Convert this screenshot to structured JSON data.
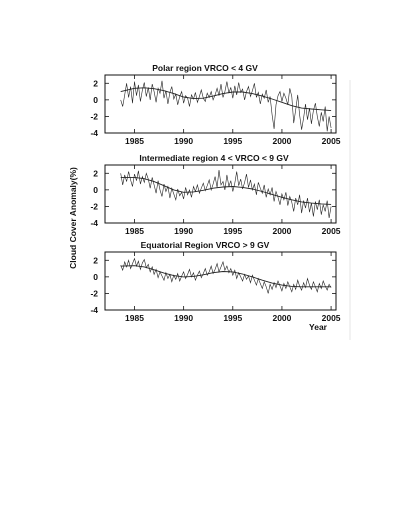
{
  "chart_data": [
    {
      "type": "line",
      "title": "Polar region VRCO < 4 GV",
      "xlabel": "",
      "ylabel": "Cloud Cover Anomaly(%)",
      "xlim": [
        1982,
        2005.5
      ],
      "ylim": [
        -4,
        3
      ],
      "xticks": [
        1985,
        1990,
        1995,
        2000,
        2005
      ],
      "yticks": [
        2,
        0,
        -2,
        -4
      ],
      "grid": false,
      "series": [
        {
          "kind": "raw",
          "x": [
            1983.6,
            1983.8,
            1984.0,
            1984.2,
            1984.4,
            1984.6,
            1984.8,
            1985.0,
            1985.2,
            1985.4,
            1985.6,
            1985.8,
            1986.0,
            1986.2,
            1986.4,
            1986.6,
            1986.8,
            1987.0,
            1987.2,
            1987.4,
            1987.6,
            1987.8,
            1988.0,
            1988.2,
            1988.4,
            1988.6,
            1988.8,
            1989.0,
            1989.2,
            1989.4,
            1989.6,
            1989.8,
            1990.0,
            1990.2,
            1990.4,
            1990.6,
            1990.8,
            1991.0,
            1991.2,
            1991.4,
            1991.6,
            1991.8,
            1992.0,
            1992.2,
            1992.4,
            1992.6,
            1992.8,
            1993.0,
            1993.2,
            1993.4,
            1993.6,
            1993.8,
            1994.0,
            1994.2,
            1994.4,
            1994.6,
            1994.8,
            1995.0,
            1995.2,
            1995.4,
            1995.6,
            1995.8,
            1996.0,
            1996.2,
            1996.4,
            1996.6,
            1996.8,
            1997.0,
            1997.2,
            1997.4,
            1997.6,
            1997.8,
            1998.0,
            1998.2,
            1998.4,
            1998.6,
            1998.8,
            1999.0,
            1999.2,
            1999.4,
            1999.6,
            1999.8,
            2000.0,
            2000.2,
            2000.4,
            2000.6,
            2000.8,
            2001.0,
            2001.2,
            2001.4,
            2001.6,
            2001.8,
            2002.0,
            2002.2,
            2002.4,
            2002.6,
            2002.8,
            2003.0,
            2003.2,
            2003.4,
            2003.6,
            2003.8,
            2004.0,
            2004.2,
            2004.4,
            2004.6,
            2004.8,
            2005.0
          ],
          "y": [
            0.0,
            -0.8,
            0.6,
            2.0,
            0.3,
            1.6,
            -0.4,
            2.2,
            0.5,
            1.8,
            -0.2,
            1.2,
            2.1,
            0.4,
            1.5,
            0.0,
            1.9,
            1.0,
            -0.3,
            1.4,
            0.8,
            2.3,
            0.2,
            1.1,
            -0.5,
            0.9,
            1.6,
            0.1,
            0.7,
            -0.6,
            0.4,
            1.0,
            -0.4,
            0.5,
            0.2,
            -0.8,
            0.6,
            0.1,
            0.9,
            -0.3,
            0.4,
            1.2,
            0.2,
            -0.2,
            0.8,
            0.3,
            1.0,
            0.0,
            0.6,
            1.4,
            0.5,
            1.9,
            0.3,
            1.0,
            2.2,
            0.8,
            1.5,
            0.2,
            1.7,
            0.6,
            2.1,
            0.9,
            1.3,
            0.0,
            1.0,
            1.6,
            0.4,
            1.1,
            2.0,
            0.3,
            0.9,
            -0.5,
            0.7,
            0.2,
            1.2,
            -0.3,
            0.4,
            -1.8,
            -3.5,
            -0.6,
            0.5,
            1.0,
            -0.2,
            0.8,
            0.2,
            -0.6,
            1.4,
            0.4,
            -2.8,
            -1.2,
            0.6,
            -1.8,
            -3.6,
            -2.2,
            -0.5,
            -2.4,
            -1.0,
            -2.9,
            -1.3,
            -0.4,
            -2.0,
            -3.2,
            -1.5,
            -2.6,
            -0.8,
            -3.8,
            -2.0,
            -3.4
          ]
        },
        {
          "kind": "smoothed",
          "x": [
            1983.6,
            1985,
            1986,
            1987,
            1988,
            1989,
            1990,
            1991,
            1992,
            1993,
            1994,
            1995,
            1996,
            1997,
            1998,
            1999,
            2000,
            2001,
            2002,
            2003,
            2004,
            2005
          ],
          "y": [
            1.0,
            1.4,
            1.45,
            1.35,
            1.1,
            0.75,
            0.35,
            0.15,
            0.2,
            0.45,
            0.75,
            0.95,
            0.95,
            0.75,
            0.45,
            0.1,
            -0.3,
            -0.7,
            -1.0,
            -1.1,
            -1.2,
            -1.3
          ]
        }
      ]
    },
    {
      "type": "line",
      "title": "Intermediate region 4 < VRCO < 9 GV",
      "xlabel": "",
      "ylabel": "Cloud Cover Anomaly(%)",
      "xlim": [
        1982,
        2005.5
      ],
      "ylim": [
        -4,
        3
      ],
      "xticks": [
        1985,
        1990,
        1995,
        2000,
        2005
      ],
      "yticks": [
        2,
        0,
        -2,
        -4
      ],
      "grid": false,
      "series": [
        {
          "kind": "raw",
          "x": [
            1983.6,
            1983.8,
            1984.0,
            1984.2,
            1984.4,
            1984.6,
            1984.8,
            1985.0,
            1985.2,
            1985.4,
            1985.6,
            1985.8,
            1986.0,
            1986.2,
            1986.4,
            1986.6,
            1986.8,
            1987.0,
            1987.2,
            1987.4,
            1987.6,
            1987.8,
            1988.0,
            1988.2,
            1988.4,
            1988.6,
            1988.8,
            1989.0,
            1989.2,
            1989.4,
            1989.6,
            1989.8,
            1990.0,
            1990.2,
            1990.4,
            1990.6,
            1990.8,
            1991.0,
            1991.2,
            1991.4,
            1991.6,
            1991.8,
            1992.0,
            1992.2,
            1992.4,
            1992.6,
            1992.8,
            1993.0,
            1993.2,
            1993.4,
            1993.6,
            1993.8,
            1994.0,
            1994.2,
            1994.4,
            1994.6,
            1994.8,
            1995.0,
            1995.2,
            1995.4,
            1995.6,
            1995.8,
            1996.0,
            1996.2,
            1996.4,
            1996.6,
            1996.8,
            1997.0,
            1997.2,
            1997.4,
            1997.6,
            1997.8,
            1998.0,
            1998.2,
            1998.4,
            1998.6,
            1998.8,
            1999.0,
            1999.2,
            1999.4,
            1999.6,
            1999.8,
            2000.0,
            2000.2,
            2000.4,
            2000.6,
            2000.8,
            2001.0,
            2001.2,
            2001.4,
            2001.6,
            2001.8,
            2002.0,
            2002.2,
            2002.4,
            2002.6,
            2002.8,
            2003.0,
            2003.2,
            2003.4,
            2003.6,
            2003.8,
            2004.0,
            2004.2,
            2004.4,
            2004.6,
            2004.8,
            2005.0
          ],
          "y": [
            2.0,
            0.6,
            1.8,
            1.0,
            2.2,
            1.2,
            0.4,
            1.9,
            1.1,
            2.3,
            0.7,
            1.6,
            0.9,
            2.0,
            1.3,
            0.2,
            1.5,
            0.6,
            -0.4,
            1.1,
            0.0,
            -0.8,
            0.7,
            -0.2,
            0.4,
            -1.0,
            0.2,
            -0.5,
            -1.2,
            0.1,
            -0.7,
            -0.3,
            -1.1,
            0.3,
            -0.6,
            0.0,
            -0.9,
            0.4,
            -0.2,
            0.6,
            -0.4,
            0.2,
            0.8,
            -0.1,
            0.5,
            1.2,
            0.0,
            0.7,
            1.6,
            0.3,
            2.4,
            0.6,
            1.0,
            0.0,
            1.8,
            0.4,
            1.1,
            -0.2,
            0.8,
            2.2,
            0.5,
            1.3,
            0.1,
            0.9,
            1.9,
            0.3,
            1.2,
            0.0,
            0.7,
            -0.6,
            0.9,
            0.2,
            -0.4,
            0.6,
            -0.9,
            0.1,
            -0.6,
            0.3,
            -1.4,
            -0.2,
            -0.9,
            -1.8,
            -0.5,
            -1.2,
            -0.3,
            -1.9,
            -0.8,
            -1.5,
            -2.6,
            -1.0,
            -1.8,
            -0.6,
            -2.8,
            -1.3,
            -2.2,
            -1.0,
            -2.7,
            -1.6,
            -3.2,
            -1.4,
            -2.4,
            -1.2,
            -3.0,
            -1.8,
            -2.6,
            -1.3,
            -3.4,
            -2.0
          ]
        },
        {
          "kind": "smoothed",
          "x": [
            1983.6,
            1985,
            1986,
            1987,
            1988,
            1989,
            1990,
            1991,
            1992,
            1993,
            1994,
            1995,
            1996,
            1997,
            1998,
            1999,
            2000,
            2001,
            2002,
            2003,
            2004,
            2005
          ],
          "y": [
            1.5,
            1.5,
            1.35,
            1.0,
            0.5,
            0.0,
            -0.3,
            -0.25,
            -0.05,
            0.2,
            0.35,
            0.4,
            0.3,
            0.1,
            -0.2,
            -0.55,
            -0.9,
            -1.2,
            -1.45,
            -1.6,
            -1.7,
            -1.75
          ]
        }
      ]
    },
    {
      "type": "line",
      "title": "Equatorial Region VRCO > 9 GV",
      "xlabel": "Year",
      "ylabel": "Cloud Cover Anomaly(%)",
      "xlim": [
        1982,
        2005.5
      ],
      "ylim": [
        -4,
        3
      ],
      "xticks": [
        1985,
        1990,
        1995,
        2000,
        2005
      ],
      "yticks": [
        2,
        0,
        -2,
        -4
      ],
      "grid": false,
      "series": [
        {
          "kind": "raw",
          "x": [
            1983.6,
            1983.8,
            1984.0,
            1984.2,
            1984.4,
            1984.6,
            1984.8,
            1985.0,
            1985.2,
            1985.4,
            1985.6,
            1985.8,
            1986.0,
            1986.2,
            1986.4,
            1986.6,
            1986.8,
            1987.0,
            1987.2,
            1987.4,
            1987.6,
            1987.8,
            1988.0,
            1988.2,
            1988.4,
            1988.6,
            1988.8,
            1989.0,
            1989.2,
            1989.4,
            1989.6,
            1989.8,
            1990.0,
            1990.2,
            1990.4,
            1990.6,
            1990.8,
            1991.0,
            1991.2,
            1991.4,
            1991.6,
            1991.8,
            1992.0,
            1992.2,
            1992.4,
            1992.6,
            1992.8,
            1993.0,
            1993.2,
            1993.4,
            1993.6,
            1993.8,
            1994.0,
            1994.2,
            1994.4,
            1994.6,
            1994.8,
            1995.0,
            1995.2,
            1995.4,
            1995.6,
            1995.8,
            1996.0,
            1996.2,
            1996.4,
            1996.6,
            1996.8,
            1997.0,
            1997.2,
            1997.4,
            1997.6,
            1997.8,
            1998.0,
            1998.2,
            1998.4,
            1998.6,
            1998.8,
            1999.0,
            1999.2,
            1999.4,
            1999.6,
            1999.8,
            2000.0,
            2000.2,
            2000.4,
            2000.6,
            2000.8,
            2001.0,
            2001.2,
            2001.4,
            2001.6,
            2001.8,
            2002.0,
            2002.2,
            2002.4,
            2002.6,
            2002.8,
            2003.0,
            2003.2,
            2003.4,
            2003.6,
            2003.8,
            2004.0,
            2004.2,
            2004.4,
            2004.6,
            2004.8,
            2005.0
          ],
          "y": [
            1.4,
            0.8,
            1.8,
            1.2,
            2.0,
            1.0,
            1.6,
            2.2,
            1.3,
            1.9,
            0.9,
            1.7,
            2.1,
            1.1,
            1.5,
            0.6,
            1.2,
            0.3,
            0.9,
            -0.1,
            0.6,
            0.1,
            -0.4,
            0.5,
            -0.2,
            0.3,
            -0.6,
            0.2,
            -0.3,
            0.4,
            -0.5,
            0.1,
            0.6,
            -0.2,
            0.3,
            0.9,
            0.0,
            0.5,
            -0.4,
            0.2,
            0.7,
            -0.1,
            0.4,
            1.0,
            0.2,
            0.6,
            1.3,
            0.4,
            0.9,
            1.6,
            0.6,
            1.2,
            1.8,
            0.8,
            1.3,
            0.5,
            1.0,
            0.2,
            0.8,
            -0.2,
            0.5,
            0.0,
            -0.5,
            0.3,
            -0.3,
            0.1,
            -0.7,
            0.2,
            -0.4,
            -1.0,
            -0.2,
            -0.8,
            -1.4,
            -0.6,
            -1.2,
            -2.0,
            -0.9,
            -1.5,
            -0.7,
            -1.3,
            -0.5,
            -1.1,
            -1.7,
            -0.8,
            -1.4,
            -0.6,
            -1.2,
            -1.8,
            -0.9,
            -1.5,
            -0.4,
            -1.1,
            -1.6,
            -0.7,
            -1.3,
            -0.2,
            -1.0,
            -1.5,
            -0.6,
            -1.2,
            -1.8,
            -0.8,
            -1.4,
            -0.5,
            -1.1,
            -1.6,
            -0.9,
            -1.3
          ]
        },
        {
          "kind": "smoothed",
          "x": [
            1983.6,
            1985,
            1986,
            1987,
            1988,
            1989,
            1990,
            1991,
            1992,
            1993,
            1994,
            1995,
            1996,
            1997,
            1998,
            1999,
            2000,
            2001,
            2002,
            2003,
            2004,
            2005
          ],
          "y": [
            1.3,
            1.35,
            1.2,
            0.85,
            0.45,
            0.15,
            0.0,
            0.05,
            0.25,
            0.5,
            0.65,
            0.6,
            0.35,
            0.0,
            -0.4,
            -0.75,
            -1.0,
            -1.15,
            -1.2,
            -1.2,
            -1.2,
            -1.2
          ]
        }
      ]
    }
  ]
}
